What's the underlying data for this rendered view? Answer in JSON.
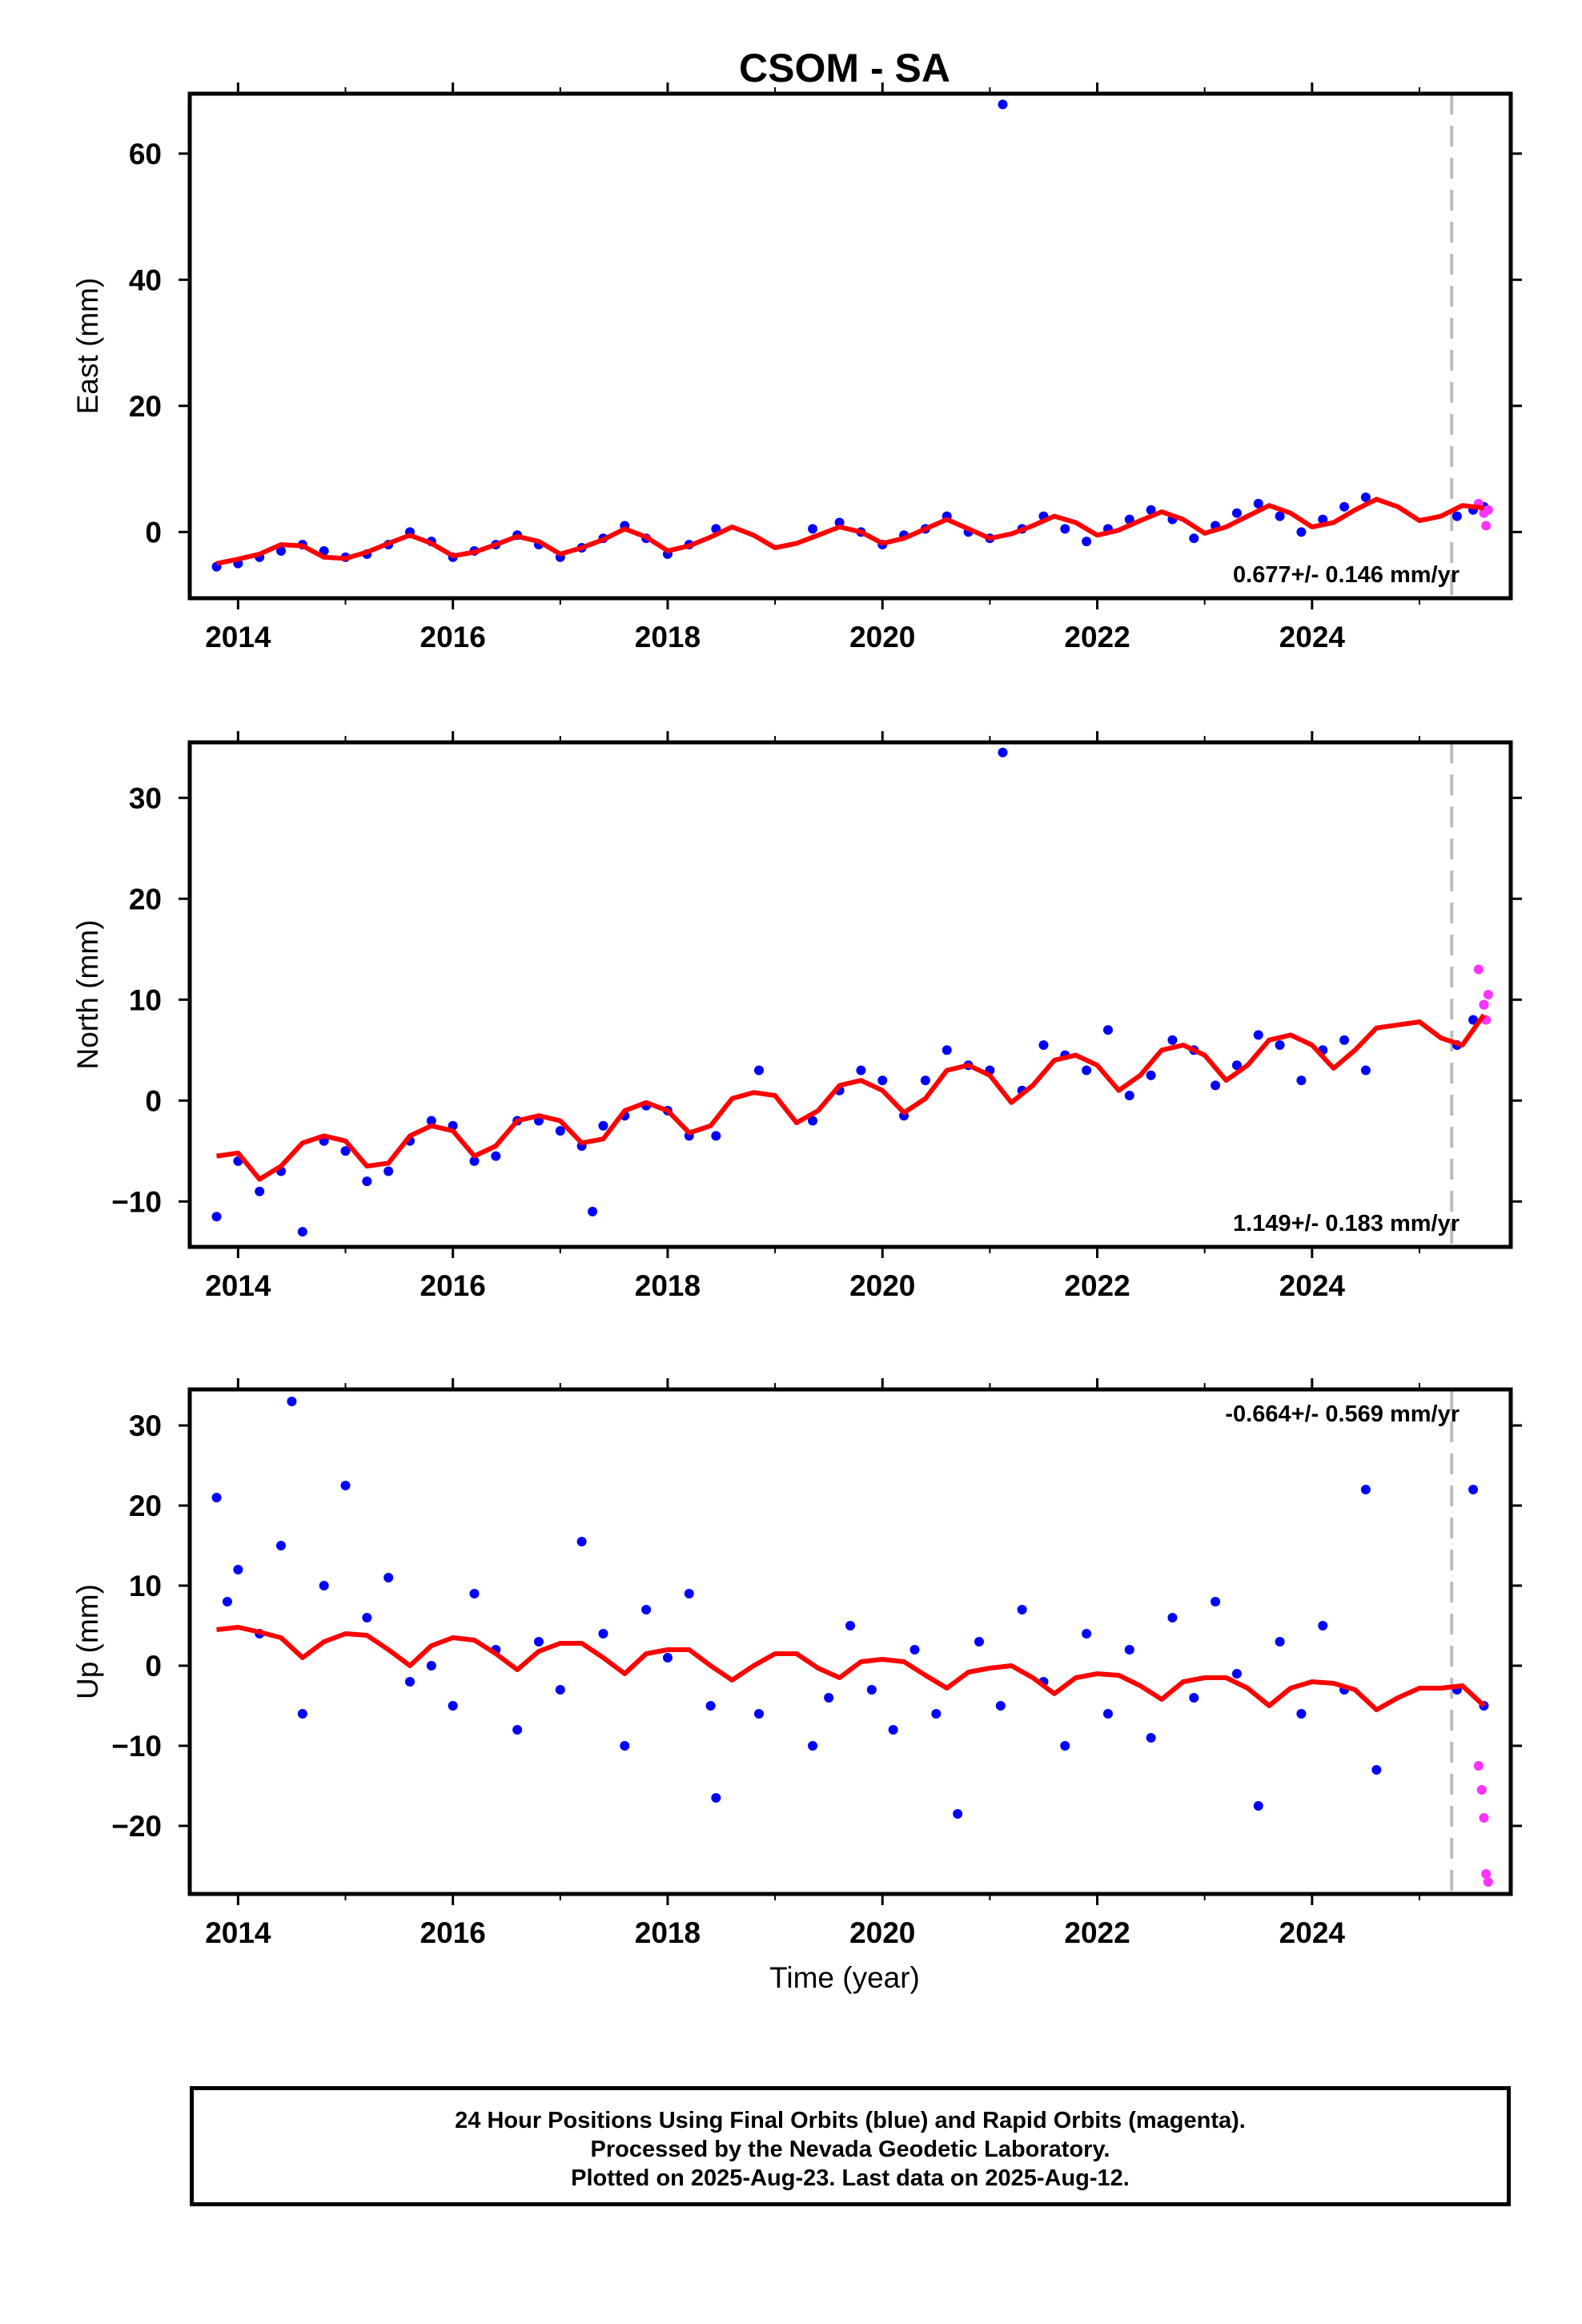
{
  "chart_data": {
    "title": "CSOM - SA",
    "xlabel": "Time (year)",
    "xlim": [
      2013.55,
      2025.85
    ],
    "xticks": [
      2014,
      2016,
      2018,
      2020,
      2022,
      2024
    ],
    "vline_x": 2025.3,
    "panels": [
      {
        "type": "scatter",
        "ylabel": "East (mm)",
        "ylim": [
          -10.5,
          69.5
        ],
        "yticks": [
          0,
          20,
          40,
          60
        ],
        "rate_label": "0.677+/- 0.146 mm/yr",
        "rate_position": "bottom-right",
        "series": [
          {
            "name": "Final Orbits",
            "color": "#0000ff",
            "x": [
              2013.8,
              2014.0,
              2014.2,
              2014.4,
              2014.6,
              2014.8,
              2015.0,
              2015.2,
              2015.4,
              2015.6,
              2015.8,
              2016.0,
              2016.2,
              2016.4,
              2016.6,
              2016.8,
              2017.0,
              2017.2,
              2017.4,
              2017.6,
              2017.8,
              2018.0,
              2018.2,
              2018.45,
              2019.35,
              2019.6,
              2019.8,
              2020.0,
              2020.2,
              2020.4,
              2020.6,
              2020.8,
              2021.0,
              2021.12,
              2021.3,
              2021.5,
              2021.7,
              2021.9,
              2022.1,
              2022.3,
              2022.5,
              2022.7,
              2022.9,
              2023.1,
              2023.3,
              2023.5,
              2023.7,
              2023.9,
              2024.1,
              2024.3,
              2024.5,
              2025.35,
              2025.5,
              2025.6
            ],
            "y": [
              -5.5,
              -5.0,
              -4.0,
              -3.0,
              -2.0,
              -3.0,
              -4.0,
              -3.5,
              -2.0,
              0.0,
              -1.5,
              -4.0,
              -3.0,
              -2.0,
              -0.5,
              -2.0,
              -4.0,
              -2.5,
              -1.0,
              1.0,
              -1.0,
              -3.5,
              -2.0,
              0.5,
              0.5,
              1.5,
              0.0,
              -2.0,
              -0.5,
              0.5,
              2.5,
              0.0,
              -1.0,
              67.8,
              0.5,
              2.5,
              0.5,
              -1.5,
              0.5,
              2.0,
              3.5,
              2.0,
              -1.0,
              1.0,
              3.0,
              4.5,
              2.5,
              0.0,
              2.0,
              4.0,
              5.5,
              2.5,
              3.5,
              4.0
            ]
          },
          {
            "name": "Rapid Orbits",
            "color": "#ff33ff",
            "x": [
              2025.55,
              2025.6,
              2025.62,
              2025.64
            ],
            "y": [
              4.5,
              3.0,
              1.0,
              3.5
            ]
          }
        ],
        "model": {
          "color": "#ff0000",
          "x": [
            2013.8,
            2014.0,
            2014.2,
            2014.4,
            2014.6,
            2014.8,
            2015.0,
            2015.2,
            2015.4,
            2015.6,
            2015.8,
            2016.0,
            2016.2,
            2016.4,
            2016.6,
            2016.8,
            2017.0,
            2017.2,
            2017.4,
            2017.6,
            2017.8,
            2018.0,
            2018.2,
            2018.4,
            2018.6,
            2018.8,
            2019.0,
            2019.2,
            2019.4,
            2019.6,
            2019.8,
            2020.0,
            2020.2,
            2020.4,
            2020.6,
            2020.8,
            2021.0,
            2021.2,
            2021.4,
            2021.6,
            2021.8,
            2022.0,
            2022.2,
            2022.4,
            2022.6,
            2022.8,
            2023.0,
            2023.2,
            2023.4,
            2023.6,
            2023.8,
            2024.0,
            2024.2,
            2024.4,
            2024.6,
            2024.8,
            2025.0,
            2025.2,
            2025.4,
            2025.6
          ],
          "y": [
            -5.0,
            -4.3,
            -3.5,
            -2.0,
            -2.2,
            -4.0,
            -4.2,
            -3.2,
            -1.8,
            -0.5,
            -1.8,
            -3.8,
            -3.2,
            -2.0,
            -0.7,
            -1.5,
            -3.5,
            -2.5,
            -1.2,
            0.5,
            -0.8,
            -3.0,
            -2.2,
            -0.8,
            0.8,
            -0.5,
            -2.5,
            -1.8,
            -0.5,
            0.8,
            0.0,
            -1.8,
            -1.0,
            0.5,
            2.0,
            0.5,
            -1.0,
            -0.3,
            1.0,
            2.5,
            1.5,
            -0.5,
            0.3,
            1.8,
            3.2,
            2.0,
            -0.2,
            0.8,
            2.5,
            4.2,
            3.0,
            0.8,
            1.5,
            3.5,
            5.2,
            4.0,
            1.8,
            2.5,
            4.2,
            3.8
          ]
        }
      },
      {
        "type": "scatter",
        "ylabel": "North (mm)",
        "ylim": [
          -14.5,
          35.5
        ],
        "yticks": [
          -10,
          0,
          10,
          20,
          30
        ],
        "rate_label": "1.149+/- 0.183 mm/yr",
        "rate_position": "bottom-right",
        "series": [
          {
            "name": "Final Orbits",
            "color": "#0000ff",
            "x": [
              2013.8,
              2014.0,
              2014.2,
              2014.4,
              2014.6,
              2014.8,
              2015.0,
              2015.2,
              2015.4,
              2015.6,
              2015.8,
              2016.0,
              2016.2,
              2016.4,
              2016.6,
              2016.8,
              2017.0,
              2017.2,
              2017.3,
              2017.4,
              2017.6,
              2017.8,
              2018.0,
              2018.2,
              2018.45,
              2018.85,
              2019.35,
              2019.6,
              2019.8,
              2020.0,
              2020.2,
              2020.4,
              2020.6,
              2020.8,
              2021.0,
              2021.12,
              2021.3,
              2021.5,
              2021.7,
              2021.9,
              2022.1,
              2022.3,
              2022.5,
              2022.7,
              2022.9,
              2023.1,
              2023.3,
              2023.5,
              2023.7,
              2023.9,
              2024.1,
              2024.3,
              2024.5,
              2025.35,
              2025.5,
              2025.6
            ],
            "y": [
              -11.5,
              -6.0,
              -9.0,
              -7.0,
              -13.0,
              -4.0,
              -5.0,
              -8.0,
              -7.0,
              -4.0,
              -2.0,
              -2.5,
              -6.0,
              -5.5,
              -2.0,
              -2.0,
              -3.0,
              -4.5,
              -11.0,
              -2.5,
              -1.5,
              -0.5,
              -1.0,
              -3.5,
              -3.5,
              3.0,
              -2.0,
              1.0,
              3.0,
              2.0,
              -1.5,
              2.0,
              5.0,
              3.5,
              3.0,
              34.5,
              1.0,
              5.5,
              4.5,
              3.0,
              7.0,
              0.5,
              2.5,
              6.0,
              5.0,
              1.5,
              3.5,
              6.5,
              5.5,
              2.0,
              5.0,
              6.0,
              3.0,
              5.5,
              8.0,
              9.5
            ]
          },
          {
            "name": "Rapid Orbits",
            "color": "#ff33ff",
            "x": [
              2025.55,
              2025.6,
              2025.62,
              2025.64
            ],
            "y": [
              13.0,
              9.5,
              8.0,
              10.5
            ]
          }
        ],
        "model": {
          "color": "#ff0000",
          "x": [
            2013.8,
            2014.0,
            2014.2,
            2014.4,
            2014.6,
            2014.8,
            2015.0,
            2015.2,
            2015.4,
            2015.6,
            2015.8,
            2016.0,
            2016.2,
            2016.4,
            2016.6,
            2016.8,
            2017.0,
            2017.2,
            2017.4,
            2017.6,
            2017.8,
            2018.0,
            2018.2,
            2018.4,
            2018.6,
            2018.8,
            2019.0,
            2019.2,
            2019.4,
            2019.6,
            2019.8,
            2020.0,
            2020.2,
            2020.4,
            2020.6,
            2020.8,
            2021.0,
            2021.2,
            2021.4,
            2021.6,
            2021.8,
            2022.0,
            2022.2,
            2022.4,
            2022.6,
            2022.8,
            2023.0,
            2023.2,
            2023.4,
            2023.6,
            2023.8,
            2024.0,
            2024.2,
            2024.4,
            2024.6,
            2024.8,
            2025.0,
            2025.2,
            2025.4,
            2025.6
          ],
          "y": [
            -5.5,
            -5.2,
            -7.8,
            -6.5,
            -4.2,
            -3.5,
            -4.0,
            -6.5,
            -6.2,
            -3.5,
            -2.5,
            -3.0,
            -5.5,
            -4.5,
            -2.0,
            -1.5,
            -2.0,
            -4.2,
            -3.8,
            -1.0,
            -0.2,
            -1.0,
            -3.2,
            -2.5,
            0.2,
            0.8,
            0.5,
            -2.2,
            -1.0,
            1.5,
            2.0,
            1.0,
            -1.2,
            0.2,
            3.0,
            3.5,
            2.5,
            -0.2,
            1.5,
            4.0,
            4.5,
            3.5,
            1.0,
            2.5,
            5.0,
            5.5,
            4.5,
            2.0,
            3.5,
            6.0,
            6.5,
            5.5,
            3.2,
            5.0,
            7.2,
            7.5,
            7.8,
            6.2,
            5.5,
            8.5
          ]
        }
      },
      {
        "type": "scatter",
        "ylabel": "Up (mm)",
        "ylim": [
          -28.5,
          34.5
        ],
        "yticks": [
          -20,
          -10,
          0,
          10,
          20,
          30
        ],
        "rate_label": "-0.664+/- 0.569 mm/yr",
        "rate_position": "top-right",
        "series": [
          {
            "name": "Final Orbits",
            "color": "#0000ff",
            "x": [
              2013.8,
              2013.9,
              2014.0,
              2014.2,
              2014.4,
              2014.5,
              2014.6,
              2014.8,
              2015.0,
              2015.2,
              2015.4,
              2015.6,
              2015.8,
              2016.0,
              2016.2,
              2016.4,
              2016.6,
              2016.8,
              2017.0,
              2017.2,
              2017.4,
              2017.6,
              2017.8,
              2018.0,
              2018.2,
              2018.4,
              2018.45,
              2018.85,
              2019.35,
              2019.5,
              2019.7,
              2019.9,
              2020.1,
              2020.3,
              2020.5,
              2020.7,
              2020.9,
              2021.1,
              2021.3,
              2021.5,
              2021.7,
              2021.9,
              2022.1,
              2022.3,
              2022.5,
              2022.7,
              2022.9,
              2023.1,
              2023.3,
              2023.5,
              2023.7,
              2023.9,
              2024.1,
              2024.3,
              2024.5,
              2024.6,
              2025.35,
              2025.5,
              2025.6
            ],
            "y": [
              21.0,
              8.0,
              12.0,
              4.0,
              15.0,
              33.0,
              -6.0,
              10.0,
              22.5,
              6.0,
              11.0,
              -2.0,
              0.0,
              -5.0,
              9.0,
              2.0,
              -8.0,
              3.0,
              -3.0,
              15.5,
              4.0,
              -10.0,
              7.0,
              1.0,
              9.0,
              -5.0,
              -16.5,
              -6.0,
              -10.0,
              -4.0,
              5.0,
              -3.0,
              -8.0,
              2.0,
              -6.0,
              -18.5,
              3.0,
              -5.0,
              7.0,
              -2.0,
              -10.0,
              4.0,
              -6.0,
              2.0,
              -9.0,
              6.0,
              -4.0,
              8.0,
              -1.0,
              -17.5,
              3.0,
              -6.0,
              5.0,
              -3.0,
              22.0,
              -13.0,
              -3.0,
              22.0,
              -5.0
            ]
          },
          {
            "name": "Rapid Orbits",
            "color": "#ff33ff",
            "x": [
              2025.55,
              2025.58,
              2025.6,
              2025.62,
              2025.64
            ],
            "y": [
              -12.5,
              -15.5,
              -19.0,
              -26.0,
              -27.0
            ]
          }
        ],
        "model": {
          "color": "#ff0000",
          "x": [
            2013.8,
            2014.0,
            2014.2,
            2014.4,
            2014.6,
            2014.8,
            2015.0,
            2015.2,
            2015.4,
            2015.6,
            2015.8,
            2016.0,
            2016.2,
            2016.4,
            2016.6,
            2016.8,
            2017.0,
            2017.2,
            2017.4,
            2017.6,
            2017.8,
            2018.0,
            2018.2,
            2018.4,
            2018.6,
            2018.8,
            2019.0,
            2019.2,
            2019.4,
            2019.6,
            2019.8,
            2020.0,
            2020.2,
            2020.4,
            2020.6,
            2020.8,
            2021.0,
            2021.2,
            2021.4,
            2021.6,
            2021.8,
            2022.0,
            2022.2,
            2022.4,
            2022.6,
            2022.8,
            2023.0,
            2023.2,
            2023.4,
            2023.6,
            2023.8,
            2024.0,
            2024.2,
            2024.4,
            2024.6,
            2024.8,
            2025.0,
            2025.2,
            2025.4,
            2025.6
          ],
          "y": [
            4.5,
            4.8,
            4.2,
            3.5,
            1.0,
            3.0,
            4.0,
            3.8,
            2.0,
            0.0,
            2.5,
            3.5,
            3.2,
            1.5,
            -0.5,
            1.8,
            2.8,
            2.8,
            1.0,
            -1.0,
            1.5,
            2.0,
            2.0,
            0.0,
            -1.8,
            0.0,
            1.5,
            1.5,
            -0.3,
            -1.5,
            0.5,
            0.8,
            0.5,
            -1.2,
            -2.8,
            -0.8,
            -0.3,
            0.0,
            -1.5,
            -3.5,
            -1.5,
            -1.0,
            -1.2,
            -2.5,
            -4.2,
            -2.0,
            -1.5,
            -1.5,
            -2.8,
            -5.0,
            -2.8,
            -2.0,
            -2.2,
            -3.0,
            -5.5,
            -4.0,
            -2.8,
            -2.8,
            -2.5,
            -5.0
          ]
        }
      }
    ]
  },
  "footer": {
    "line1": "24 Hour Positions Using Final Orbits (blue) and Rapid Orbits (magenta).",
    "line2": "Processed by the Nevada Geodetic Laboratory.",
    "line3": "Plotted on 2025-Aug-23. Last data on 2025-Aug-12."
  }
}
